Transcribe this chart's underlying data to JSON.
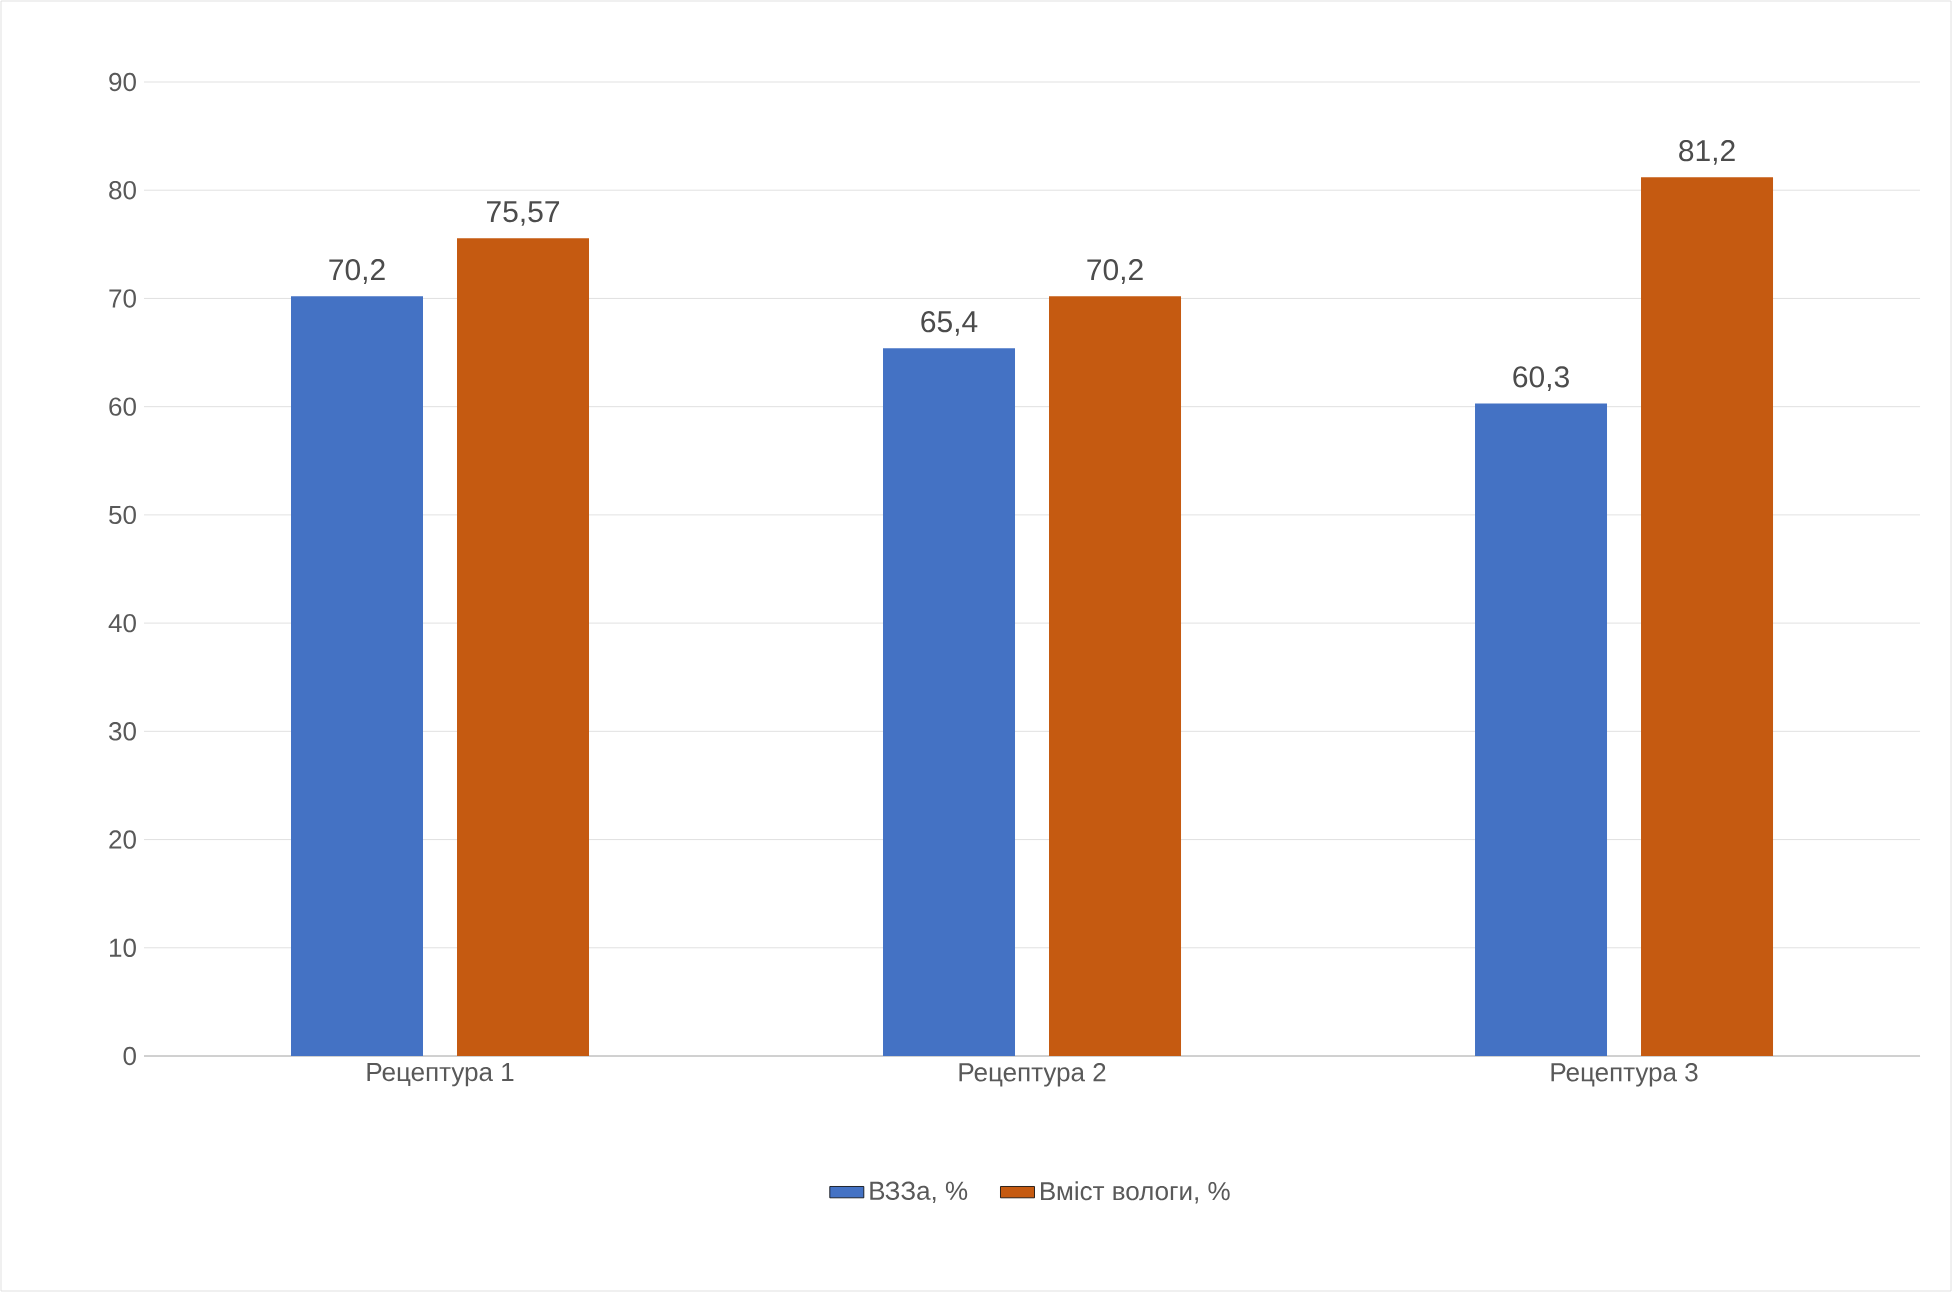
{
  "chart_data": {
    "type": "bar",
    "categories": [
      "Рецептура 1",
      "Рецептура 2",
      "Рецептура 3"
    ],
    "series": [
      {
        "name": "ВЗЗа, %",
        "color": "#4472c4",
        "values": [
          70.2,
          65.4,
          60.3
        ],
        "value_labels": [
          "70,2",
          "65,4",
          "60,3"
        ]
      },
      {
        "name": "Вміст вологи, %",
        "color": "#c55a11",
        "values": [
          75.57,
          70.2,
          81.2
        ],
        "value_labels": [
          "75,57",
          "70,2",
          "81,2"
        ]
      }
    ],
    "ylim": [
      0,
      90
    ],
    "yticks": [
      0,
      10,
      20,
      30,
      40,
      50,
      60,
      70,
      80,
      90
    ],
    "grid": "y",
    "legend": "bottom"
  }
}
